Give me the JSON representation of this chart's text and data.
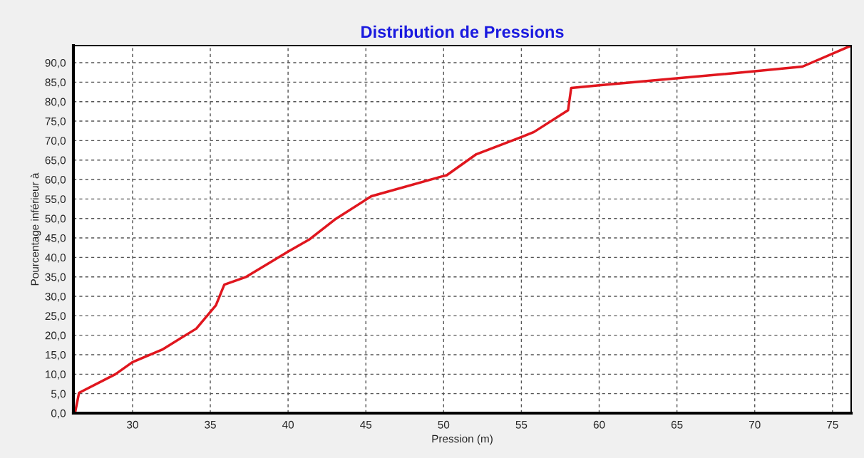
{
  "chart_data": {
    "type": "line",
    "title": "Distribution de Pressions",
    "xlabel": "Pression (m)",
    "ylabel": "Pourcentage inférieur à",
    "series": [
      {
        "color": "#e0161e",
        "x": [
          26.3,
          26.56,
          28.9,
          30.0,
          31.9,
          34.1,
          35.36,
          35.9,
          37.26,
          40.0,
          41.4,
          43.0,
          45.35,
          49.9,
          50.2,
          52.1,
          55.0,
          55.8,
          58.0,
          58.2,
          60.0,
          70.0,
          73.07,
          76.2
        ],
        "values": [
          0,
          5.2,
          10.0,
          13.1,
          16.3,
          21.7,
          27.7,
          33.0,
          34.9,
          41.5,
          44.7,
          49.7,
          55.7,
          60.8,
          61.1,
          66.5,
          70.9,
          72.2,
          77.8,
          83.5,
          84.2,
          87.8,
          89.0,
          94.4
        ]
      }
    ],
    "xlim": [
      26.2,
      76.2
    ],
    "ylim": [
      0,
      94.4
    ],
    "xticks": [
      30,
      35,
      40,
      45,
      50,
      55,
      60,
      65,
      70,
      75
    ],
    "yticks": [
      {
        "value": 0,
        "label": "0,0"
      },
      {
        "value": 5,
        "label": "5,0"
      },
      {
        "value": 10,
        "label": "10,0"
      },
      {
        "value": 15,
        "label": "15,0"
      },
      {
        "value": 20,
        "label": "20,0"
      },
      {
        "value": 25,
        "label": "25,0"
      },
      {
        "value": 30,
        "label": "30,0"
      },
      {
        "value": 35,
        "label": "35,0"
      },
      {
        "value": 40,
        "label": "40,0"
      },
      {
        "value": 45,
        "label": "45,0"
      },
      {
        "value": 50,
        "label": "50,0"
      },
      {
        "value": 55,
        "label": "55,0"
      },
      {
        "value": 60,
        "label": "60,0"
      },
      {
        "value": 65,
        "label": "65,0"
      },
      {
        "value": 70,
        "label": "70,0"
      },
      {
        "value": 75,
        "label": "75,0"
      },
      {
        "value": 80,
        "label": "80,0"
      },
      {
        "value": 85,
        "label": "85,0"
      },
      {
        "value": 90,
        "label": "90,0"
      }
    ],
    "grid": true,
    "line_style": "solid"
  }
}
